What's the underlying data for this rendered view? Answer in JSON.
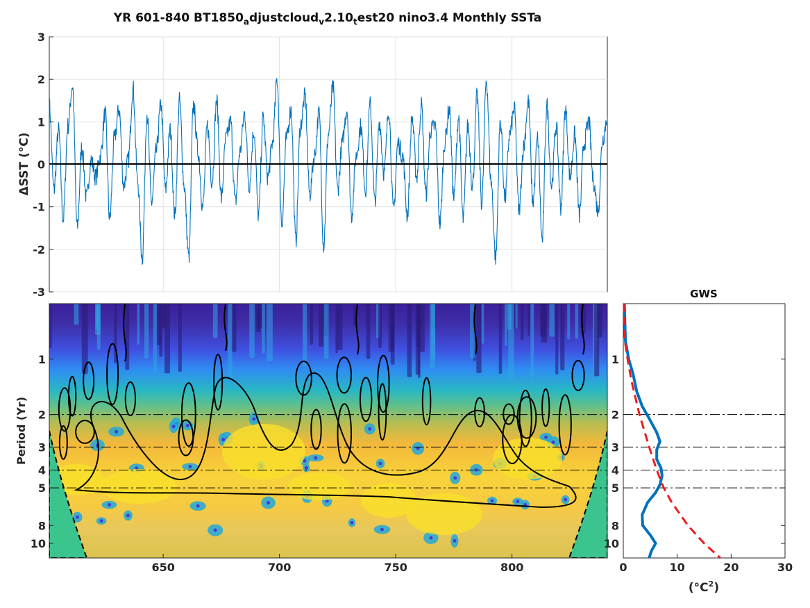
{
  "title": {
    "prefix": "YR 601-840 BT1850",
    "sub1": "a",
    "part2": "djustcloud",
    "sub2": "v",
    "part3": "2.10",
    "sub3": "t",
    "part4": "est20 nino3.4 Monthly SSTa"
  },
  "chart_data": [
    {
      "type": "line",
      "panel": "time-series",
      "ylabel": "ΔSST (°C)",
      "xlim": [
        601,
        841
      ],
      "ylim": [
        -3,
        3
      ],
      "yticks": [
        "-3",
        "-2",
        "-1",
        "0",
        "1",
        "2",
        "3"
      ],
      "xticks": [
        "650",
        "700",
        "750",
        "800"
      ],
      "grid": true,
      "zero_line": true,
      "series": [
        {
          "color": "#0072bd",
          "x": [
            601,
            603,
            605,
            607,
            609,
            611,
            613,
            615,
            617,
            619,
            621,
            623,
            625,
            627,
            629,
            631,
            633,
            635,
            637,
            639,
            641,
            643,
            645,
            647,
            649,
            651,
            653,
            655,
            657,
            659,
            661,
            663,
            665,
            667,
            669,
            671,
            673,
            675,
            677,
            679,
            681,
            683,
            685,
            687,
            689,
            691,
            693,
            695,
            697,
            699,
            701,
            703,
            705,
            707,
            709,
            711,
            713,
            715,
            717,
            719,
            721,
            723,
            725,
            727,
            729,
            731,
            733,
            735,
            737,
            739,
            741,
            743,
            745,
            747,
            749,
            751,
            753,
            755,
            757,
            759,
            761,
            763,
            765,
            767,
            769,
            771,
            773,
            775,
            777,
            779,
            781,
            783,
            785,
            787,
            789,
            791,
            793,
            795,
            797,
            799,
            801,
            803,
            805,
            807,
            809,
            811,
            813,
            815,
            817,
            819,
            821,
            823,
            825,
            827,
            829,
            831,
            833,
            835,
            837,
            839,
            841
          ],
          "values": [
            1.4,
            -0.6,
            0.8,
            -1.3,
            0.9,
            1.85,
            -1.5,
            0.4,
            -0.8,
            0.1,
            -0.3,
            0.2,
            1.2,
            -1.3,
            0.6,
            1.3,
            -0.5,
            0.1,
            1.8,
            -0.4,
            -2.2,
            1.2,
            -0.9,
            0.3,
            1.4,
            -0.6,
            0.8,
            -1.2,
            1.5,
            -0.5,
            -2.2,
            1.4,
            0.3,
            -1.0,
            0.9,
            -0.4,
            1.5,
            -0.8,
            0.6,
            1.0,
            -0.9,
            0.3,
            1.2,
            -0.5,
            0.8,
            -1.2,
            1.1,
            -0.3,
            0.5,
            2.0,
            -1.4,
            0.6,
            1.3,
            -1.8,
            0.9,
            1.6,
            -0.7,
            0.2,
            1.2,
            -1.9,
            0.7,
            1.8,
            -0.6,
            0.5,
            1.3,
            -1.2,
            0.2,
            0.9,
            -0.6,
            1.4,
            -0.9,
            1.0,
            -0.2,
            1.3,
            -1.1,
            0.5,
            0.2,
            -1.2,
            1.1,
            -0.3,
            1.4,
            -0.7,
            0.8,
            0.9,
            -1.4,
            0.5,
            1.3,
            -0.8,
            1.1,
            -1.3,
            0.9,
            -0.5,
            1.6,
            -0.9,
            2.0,
            -0.4,
            -2.2,
            1.0,
            -0.8,
            0.7,
            1.3,
            -1.1,
            0.4,
            1.5,
            -0.9,
            0.6,
            -1.8,
            1.4,
            -0.5,
            0.9,
            -1.0,
            1.3,
            -0.3,
            0.7,
            -1.2,
            0.5,
            1.0,
            -0.4,
            -1.1,
            0.6,
            1.1
          ]
        }
      ]
    },
    {
      "type": "heatmap",
      "panel": "wavelet-power-spectrum",
      "ylabel": "Period (Yr)",
      "xlim": [
        601,
        841
      ],
      "ylim": [
        0.5,
        12
      ],
      "yscale": "log",
      "yticks": [
        "1",
        "2",
        "3",
        "4",
        "5",
        "8",
        "10"
      ],
      "xticks": [
        "650",
        "700",
        "750",
        "800"
      ],
      "reference_periods": [
        2,
        3,
        4,
        5
      ],
      "colormap": "parula",
      "cone_of_influence": true
    },
    {
      "type": "line",
      "panel": "global-wavelet-spectrum",
      "title": "GWS",
      "xlabel": "(°C²)",
      "xlabel_main": "(°C",
      "xlabel_sup": "2",
      "xlabel_end": ")",
      "xlim": [
        0,
        30
      ],
      "xticks": [
        "0",
        "10",
        "20",
        "30"
      ],
      "yticks": [
        "1",
        "2",
        "3",
        "4",
        "5",
        "8",
        "10"
      ],
      "reference_periods": [
        2,
        3,
        4,
        5
      ],
      "series": [
        {
          "style": "solid",
          "color": "#0072bd",
          "period": [
            0.5,
            0.8,
            1.0,
            1.2,
            1.5,
            1.8,
            2.1,
            2.5,
            2.8,
            3.1,
            3.5,
            3.9,
            4.3,
            4.8,
            5.3,
            6.0,
            7.0,
            8.0,
            9.0,
            10.0,
            11.0,
            12.0
          ],
          "power": [
            0.2,
            0.4,
            1.0,
            1.8,
            2.5,
            3.5,
            4.8,
            6.2,
            6.8,
            6.2,
            6.2,
            7.0,
            7.2,
            6.8,
            6.0,
            4.5,
            3.5,
            3.6,
            5.0,
            6.0,
            5.2,
            4.8
          ]
        },
        {
          "style": "dashed",
          "color": "#e81e1e",
          "period": [
            0.5,
            0.8,
            1.0,
            1.3,
            1.6,
            2.0,
            2.5,
            3.0,
            4.0,
            5.0,
            6.0,
            8.0,
            10.0,
            12.0
          ],
          "power": [
            0.1,
            0.3,
            0.8,
            1.5,
            2.2,
            3.0,
            4.0,
            4.8,
            6.2,
            7.5,
            9.0,
            12.0,
            15.0,
            18.0
          ]
        }
      ]
    }
  ]
}
